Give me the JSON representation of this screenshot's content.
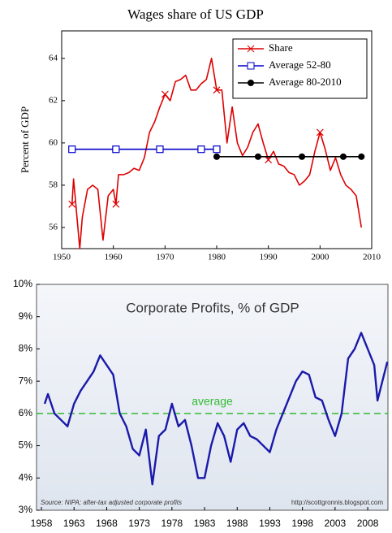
{
  "chart_data": [
    {
      "type": "line",
      "title": "Wages share of US GDP",
      "ylabel": "Percent of GDP",
      "xlim": [
        1950,
        2010
      ],
      "ylim": [
        55,
        65.3
      ],
      "xticks": [
        1950,
        1960,
        1970,
        1980,
        1990,
        2000,
        2010
      ],
      "yticks": [
        56,
        58,
        60,
        62,
        64
      ],
      "legend": "upper right",
      "series": [
        {
          "name": "Share",
          "color": "#dd0000",
          "marker": "x",
          "x": [
            1952,
            1952.3,
            1953.5,
            1954,
            1955,
            1956,
            1957,
            1958,
            1959,
            1960,
            1960.5,
            1961,
            1962,
            1963,
            1964,
            1965,
            1966,
            1967,
            1968,
            1969,
            1970,
            1971,
            1972,
            1973,
            1974,
            1975,
            1976,
            1977,
            1978,
            1979,
            1980,
            1981,
            1982,
            1983,
            1984,
            1985,
            1986,
            1987,
            1988,
            1989,
            1990,
            1991,
            1992,
            1993,
            1994,
            1995,
            1996,
            1997,
            1998,
            1999,
            2000,
            2001,
            2002,
            2003,
            2004,
            2005,
            2006,
            2007,
            2008
          ],
          "values": [
            57.1,
            58.3,
            55.0,
            56.5,
            57.8,
            58.0,
            57.8,
            55.4,
            57.5,
            57.8,
            57.1,
            58.5,
            58.5,
            58.6,
            58.8,
            58.7,
            59.3,
            60.5,
            61.0,
            61.7,
            62.3,
            62.0,
            62.9,
            63.0,
            63.2,
            62.5,
            62.5,
            62.8,
            63.0,
            64.0,
            62.5,
            62.5,
            60.0,
            61.7,
            60.0,
            59.4,
            59.8,
            60.5,
            60.9,
            60.0,
            59.2,
            59.6,
            59.0,
            58.9,
            58.6,
            58.5,
            58.0,
            58.2,
            58.5,
            59.6,
            60.5,
            59.7,
            58.7,
            59.3,
            58.5,
            58.0,
            57.8,
            57.5,
            56.0
          ]
        },
        {
          "name": "Average 52-80",
          "color": "#0000cc",
          "marker": "square",
          "x": [
            1952,
            1960.5,
            1969,
            1977,
            1980
          ],
          "values": [
            59.7,
            59.7,
            59.7,
            59.7,
            59.7
          ]
        },
        {
          "name": "Average 80-2010",
          "color": "#000000",
          "marker": "dot",
          "x": [
            1980,
            1988,
            1996.5,
            2004.5,
            2008
          ],
          "values": [
            59.35,
            59.35,
            59.35,
            59.35,
            59.35
          ]
        }
      ]
    },
    {
      "type": "line",
      "title": "Corporate Profits, % of GDP",
      "xlim": [
        1957.25,
        2011.1
      ],
      "ylim": [
        3,
        10
      ],
      "xticks": [
        1958,
        1963,
        1968,
        1973,
        1978,
        1983,
        1988,
        1993,
        1998,
        2003,
        2008
      ],
      "yticks": [
        {
          "value": 3,
          "label": "3%"
        },
        {
          "value": 4,
          "label": "4%"
        },
        {
          "value": 5,
          "label": "5%"
        },
        {
          "value": 6,
          "label": "6%"
        },
        {
          "value": 7,
          "label": "7%"
        },
        {
          "value": 8,
          "label": "8%"
        },
        {
          "value": 9,
          "label": "9%"
        },
        {
          "value": 10,
          "label": "10%"
        }
      ],
      "series": [
        {
          "color": "#1a1aaa",
          "x": [
            1958.5,
            1959,
            1960,
            1961,
            1962,
            1963,
            1964,
            1965,
            1966,
            1967,
            1968,
            1969,
            1970,
            1971,
            1972,
            1973,
            1974,
            1975,
            1976,
            1977,
            1978,
            1979,
            1980,
            1981,
            1982,
            1983,
            1984,
            1985,
            1986,
            1987,
            1988,
            1989,
            1990,
            1991,
            1992,
            1993,
            1994,
            1995,
            1996,
            1997,
            1998,
            1999,
            2000,
            2001,
            2002,
            2003,
            2004,
            2005,
            2006,
            2007,
            2008,
            2009,
            2009.5,
            2010,
            2011
          ],
          "values": [
            6.3,
            6.6,
            6.0,
            5.8,
            5.6,
            6.3,
            6.7,
            7.0,
            7.3,
            7.8,
            7.5,
            7.2,
            6.0,
            5.6,
            4.9,
            4.7,
            5.5,
            3.8,
            5.3,
            5.5,
            6.3,
            5.6,
            5.8,
            5.0,
            4.0,
            4.0,
            5.0,
            5.7,
            5.3,
            4.5,
            5.5,
            5.7,
            5.3,
            5.2,
            5.0,
            4.8,
            5.5,
            6.0,
            6.5,
            7.0,
            7.3,
            7.2,
            6.5,
            6.4,
            5.8,
            5.3,
            6.0,
            7.7,
            8.0,
            8.5,
            8.0,
            7.5,
            6.4,
            6.8,
            7.6
          ]
        }
      ],
      "reference_line": {
        "value": 6,
        "label": "average",
        "color": "#33bb33"
      },
      "source": "Source: NIPA; after-tax adjusted corporate profits",
      "url": "http://scottgronnis.blogspot.com"
    }
  ]
}
